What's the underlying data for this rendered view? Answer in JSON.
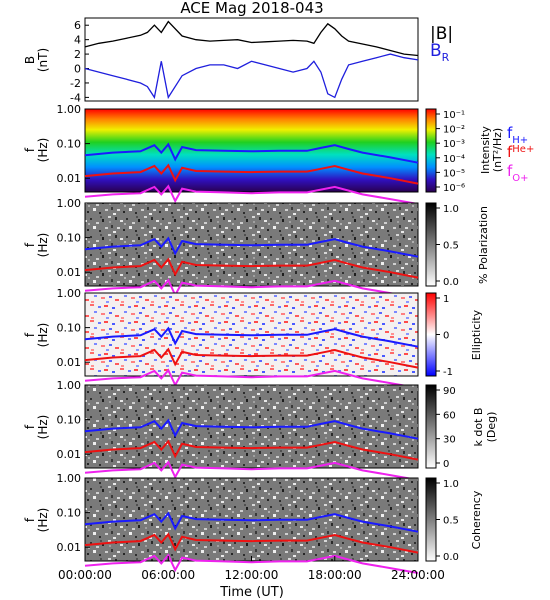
{
  "title": "ACE Mag 2018-043",
  "xlabel": "Time (UT)",
  "colors": {
    "b_total": "#000000",
    "b_r": "#1f1fdd",
    "f_h": "#1a1aff",
    "f_he": "#ee1111",
    "f_o": "#ee22ee"
  },
  "chart_data": [
    {
      "type": "line",
      "panel": "magnetic-field",
      "ylabel": "B",
      "yunit": "(nT)",
      "ylim": [
        -4.5,
        7
      ],
      "yticks": [
        "-4",
        "-2",
        "0",
        "2",
        "4",
        "6"
      ],
      "x": [
        "00:00",
        "01:00",
        "02:00",
        "03:00",
        "04:00",
        "04:30",
        "05:00",
        "05:30",
        "06:00",
        "07:00",
        "08:00",
        "09:00",
        "10:00",
        "11:00",
        "12:00",
        "13:00",
        "14:00",
        "15:00",
        "16:00",
        "16:30",
        "17:00",
        "17:30",
        "18:00",
        "18:30",
        "19:00",
        "20:00",
        "21:00",
        "22:00",
        "23:00",
        "24:00"
      ],
      "series": [
        {
          "name": "|B|",
          "values": [
            3.0,
            3.5,
            3.8,
            4.2,
            4.6,
            5.0,
            6.0,
            5.0,
            6.5,
            4.5,
            4.0,
            3.8,
            3.9,
            4.0,
            3.6,
            3.7,
            3.8,
            3.9,
            3.8,
            3.5,
            5.0,
            6.2,
            5.5,
            4.5,
            3.8,
            3.4,
            3.0,
            2.5,
            2.0,
            1.8
          ]
        },
        {
          "name": "BR",
          "values": [
            0.0,
            -0.5,
            -1.0,
            -1.5,
            -2.0,
            -2.5,
            -4.0,
            1.0,
            -4.0,
            -1.0,
            0.0,
            0.5,
            0.5,
            0.0,
            1.0,
            0.5,
            0.0,
            -0.5,
            0.0,
            1.0,
            -0.5,
            -3.5,
            -4.0,
            -1.5,
            0.5,
            1.0,
            1.5,
            2.0,
            1.5,
            1.2
          ]
        }
      ]
    },
    {
      "type": "heatmap",
      "panel": "intensity",
      "ylabel": "f",
      "yunit": "(Hz)",
      "scale": "log",
      "ylim": [
        0.004,
        1.0
      ],
      "yticks": [
        "1.00",
        "0.10",
        "0.01"
      ],
      "colorbar_label": "Intensity",
      "colorbar_unit": "(nT²/Hz)",
      "colorbar_ticks": [
        "10⁻¹",
        "10⁻²",
        "10⁻³",
        "10⁻⁴",
        "10⁻⁵",
        "10⁻⁶"
      ]
    },
    {
      "type": "heatmap",
      "panel": "polarization",
      "ylabel": "f",
      "yunit": "(Hz)",
      "scale": "log",
      "ylim": [
        0.004,
        1.0
      ],
      "yticks": [
        "1.00",
        "0.10",
        "0.01"
      ],
      "colorbar_label": "% Polarization",
      "colorbar_ticks": [
        "1.0",
        "0.5",
        "0.0"
      ]
    },
    {
      "type": "heatmap",
      "panel": "ellipticity",
      "ylabel": "f",
      "yunit": "(Hz)",
      "scale": "log",
      "ylim": [
        0.004,
        1.0
      ],
      "yticks": [
        "1.00",
        "0.10",
        "0.01"
      ],
      "colorbar_label": "Ellipticity",
      "colorbar_ticks": [
        "1",
        "0",
        "-1"
      ]
    },
    {
      "type": "heatmap",
      "panel": "k-dot-b",
      "ylabel": "f",
      "yunit": "(Hz)",
      "scale": "log",
      "ylim": [
        0.004,
        1.0
      ],
      "yticks": [
        "1.00",
        "0.10",
        "0.01"
      ],
      "colorbar_label": "k dot B",
      "colorbar_unit": "(Deg)",
      "colorbar_ticks": [
        "90",
        "60",
        "30",
        "0"
      ]
    },
    {
      "type": "heatmap",
      "panel": "coherency",
      "ylabel": "f",
      "yunit": "(Hz)",
      "scale": "log",
      "ylim": [
        0.004,
        1.0
      ],
      "yticks": [
        "1.00",
        "0.10",
        "0.01"
      ],
      "colorbar_label": "Coherency",
      "colorbar_ticks": [
        "1.0",
        "0.5",
        "0.0"
      ],
      "xticks": [
        "00:00:00",
        "06:00:00",
        "12:00:00",
        "18:00:00",
        "24:00:00"
      ]
    },
    {
      "type": "line",
      "panel": "gyrofrequencies",
      "x": [
        "00:00",
        "02:00",
        "04:00",
        "05:00",
        "05:30",
        "06:00",
        "06:30",
        "07:00",
        "08:00",
        "10:00",
        "12:00",
        "14:00",
        "16:00",
        "17:00",
        "18:00",
        "19:00",
        "20:00",
        "22:00",
        "24:00"
      ],
      "series": [
        {
          "name": "fH+",
          "label_main": "f",
          "label_sub": "H+",
          "values": [
            0.046,
            0.055,
            0.06,
            0.09,
            0.055,
            0.095,
            0.035,
            0.08,
            0.065,
            0.062,
            0.06,
            0.062,
            0.062,
            0.075,
            0.09,
            0.07,
            0.055,
            0.04,
            0.028
          ]
        },
        {
          "name": "fHe+",
          "label_main": "f",
          "label_sub": "He+",
          "values": [
            0.0115,
            0.0137,
            0.015,
            0.0225,
            0.0137,
            0.0237,
            0.0087,
            0.02,
            0.0162,
            0.0155,
            0.015,
            0.0155,
            0.0155,
            0.0187,
            0.0225,
            0.0175,
            0.0137,
            0.01,
            0.007
          ]
        },
        {
          "name": "fO+",
          "label_main": "f",
          "label_sub": "O+",
          "values": [
            0.0029,
            0.0034,
            0.0037,
            0.0056,
            0.0034,
            0.0059,
            0.0022,
            0.005,
            0.0041,
            0.0039,
            0.0037,
            0.0039,
            0.0039,
            0.0047,
            0.0056,
            0.0044,
            0.0034,
            0.0025,
            0.0018
          ]
        }
      ]
    }
  ]
}
